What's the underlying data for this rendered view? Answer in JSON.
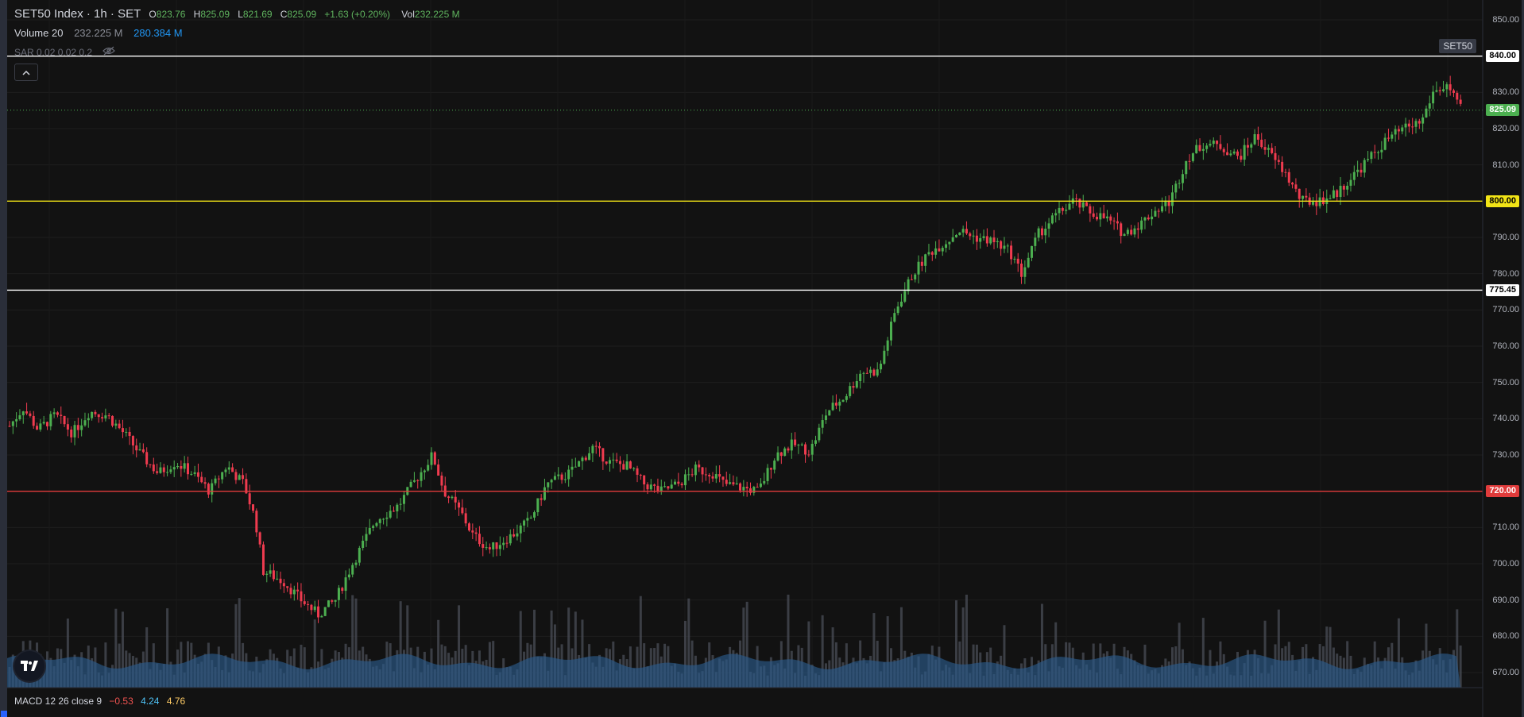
{
  "legend": {
    "symbol_title": "SET50 Index · 1h · SET",
    "open_key": "O",
    "open_val": "823.76",
    "high_key": "H",
    "high_val": "825.09",
    "low_key": "L",
    "low_val": "821.69",
    "close_key": "C",
    "close_val": "825.09",
    "change": "+1.63 (+0.20%)",
    "vol_key": "Vol",
    "vol_val": "232.225 M",
    "volume_label": "Volume 20",
    "volume_val1": "232.225 M",
    "volume_val2": "280.384 M",
    "sar_label": "SAR 0.02 0.02 0.2"
  },
  "symbol_tag": "SET50",
  "macd": {
    "label": "MACD 12 26 close 9",
    "v1": "−0.53",
    "v2": "4.24",
    "v3": "4.76"
  },
  "price_axis": {
    "ticks": [
      "850.00",
      "840.00",
      "830.00",
      "820.00",
      "810.00",
      "800.00",
      "790.00",
      "780.00",
      "770.00",
      "760.00",
      "750.00",
      "740.00",
      "730.00",
      "720.00",
      "710.00",
      "700.00",
      "690.00",
      "680.00",
      "670.00"
    ]
  },
  "horizontal_levels": [
    {
      "label": "840.00",
      "color": "#ffffff"
    },
    {
      "label": "800.00",
      "color": "#f2e416"
    },
    {
      "label": "775.45",
      "color": "#ffffff"
    },
    {
      "label": "720.00",
      "color": "#e03b3b"
    }
  ],
  "last_price": {
    "label": "825.09",
    "color": "#4caf50"
  },
  "colors": {
    "up": "#4caf50",
    "down": "#ef3b4f",
    "background": "#121212",
    "volume_area": "#2b5a8a",
    "volume_bar": "#4a4e57"
  },
  "icons": {
    "collapse": "chevron-up-icon",
    "hide": "eye-off-icon",
    "logo": "tradingview-logo"
  }
}
